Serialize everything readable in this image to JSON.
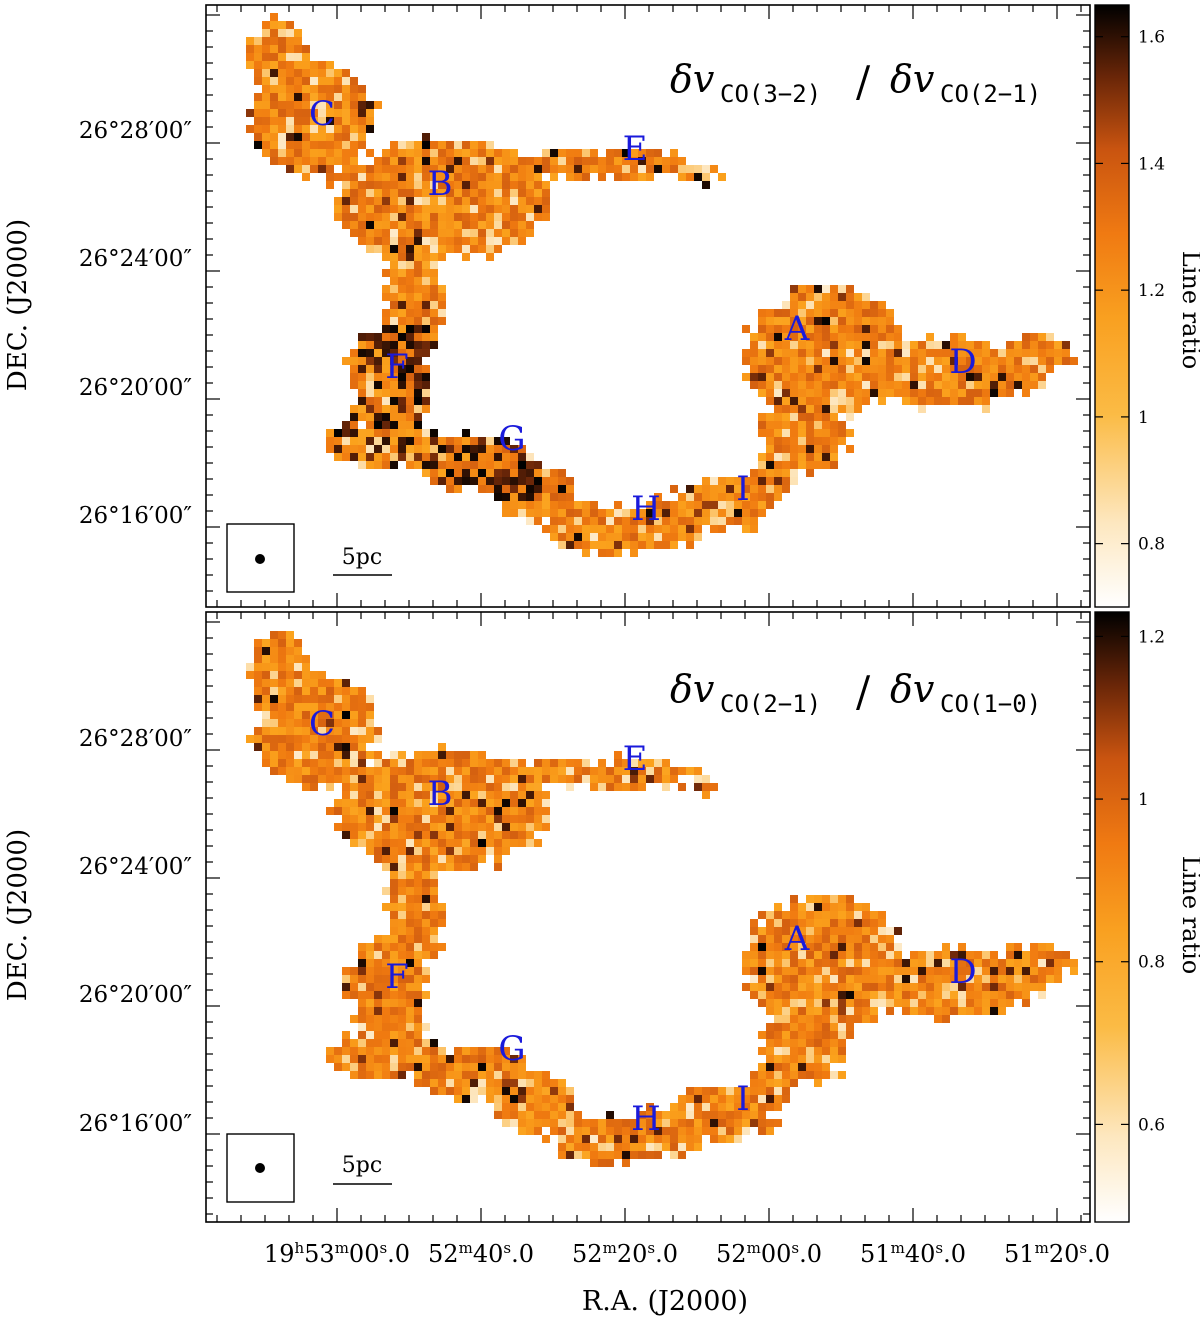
{
  "chart_data": [
    {
      "type": "heatmap",
      "panel": "top",
      "title_main": "δv",
      "title_sub1": "CO(3−2)",
      "title_sep": "/",
      "title_main2": "δv",
      "title_sub2": "CO(2−1)",
      "xlabel": "R.A. (J2000)",
      "ylabel": "DEC. (J2000)",
      "colorbar_label": "Line ratio",
      "colorbar_range": [
        0.7,
        1.65
      ],
      "colorbar_ticks": [
        "0.8",
        "1",
        "1.2",
        "1.4",
        "1.6"
      ],
      "colorbar_tick_values": [
        0.8,
        1.0,
        1.2,
        1.4,
        1.6
      ],
      "dec_ticks": [
        "26°16′00″",
        "26°20′00″",
        "26°24′00″",
        "26°28′00″"
      ],
      "scale_bar": "5pc",
      "region_labels": [
        "C",
        "B",
        "E",
        "A",
        "D",
        "F",
        "G",
        "H",
        "I"
      ]
    },
    {
      "type": "heatmap",
      "panel": "bottom",
      "title_main": "δv",
      "title_sub1": "CO(2−1)",
      "title_sep": "/",
      "title_main2": "δv",
      "title_sub2": "CO(1−0)",
      "xlabel": "R.A. (J2000)",
      "ylabel": "DEC. (J2000)",
      "colorbar_label": "Line ratio",
      "colorbar_range": [
        0.48,
        1.23
      ],
      "colorbar_ticks": [
        "0.6",
        "0.8",
        "1",
        "1.2"
      ],
      "colorbar_tick_values": [
        0.6,
        0.8,
        1.0,
        1.2
      ],
      "dec_ticks": [
        "26°16′00″",
        "26°20′00″",
        "26°24′00″",
        "26°28′00″"
      ],
      "ra_ticks": [
        {
          "h": "19",
          "hu": "h",
          "m": "53",
          "mu": "m",
          "s": "00",
          "su": "s",
          "f": ".0"
        },
        {
          "h": "",
          "hu": "",
          "m": "52",
          "mu": "m",
          "s": "40",
          "su": "s",
          "f": ".0"
        },
        {
          "h": "",
          "hu": "",
          "m": "52",
          "mu": "m",
          "s": "20",
          "su": "s",
          "f": ".0"
        },
        {
          "h": "",
          "hu": "",
          "m": "52",
          "mu": "m",
          "s": "00",
          "su": "s",
          "f": ".0"
        },
        {
          "h": "",
          "hu": "",
          "m": "51",
          "mu": "m",
          "s": "40",
          "su": "s",
          "f": ".0"
        },
        {
          "h": "",
          "hu": "",
          "m": "51",
          "mu": "m",
          "s": "20",
          "su": "s",
          "f": ".0"
        }
      ],
      "scale_bar": "5pc",
      "region_labels": [
        "C",
        "B",
        "E",
        "A",
        "D",
        "F",
        "G",
        "H",
        "I"
      ]
    }
  ],
  "colors": {
    "region_label": "#1a1adb",
    "axis": "#000000",
    "colormap": [
      "#ffffff",
      "#fcd592",
      "#fba21c",
      "#f07a10",
      "#c85510",
      "#6a2608",
      "#000000"
    ]
  }
}
